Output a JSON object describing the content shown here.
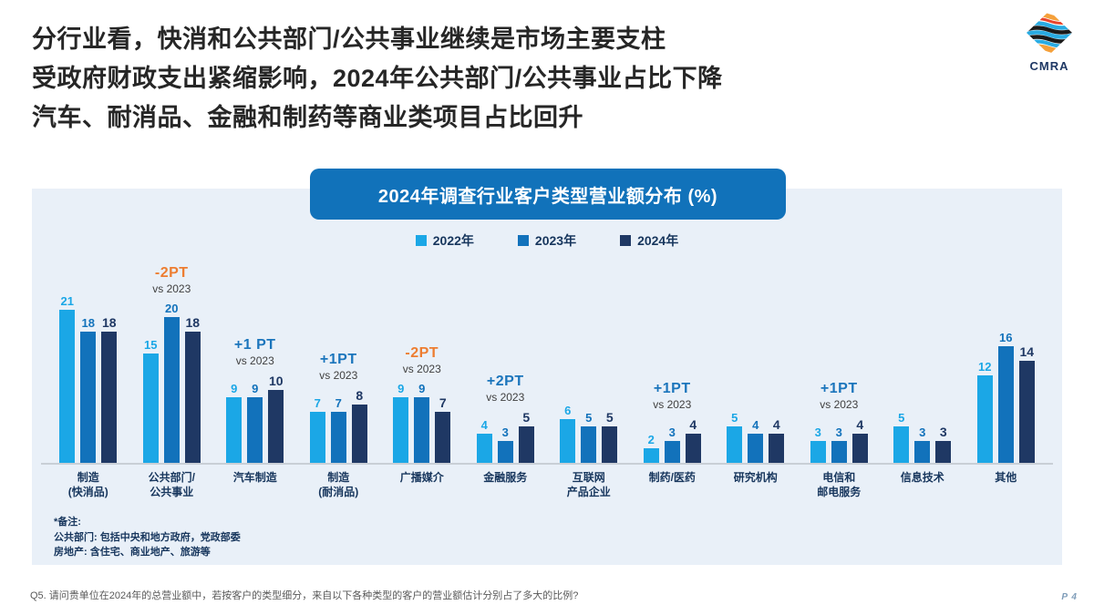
{
  "slide": {
    "title_lines": [
      "分行业看，快消和公共部门/公共事业继续是市场主要支柱",
      "受政府财政支出紧缩影响，2024年公共部门/公共事业占比下降",
      "汽车、耐消品、金融和制药等商业类项目占比回升"
    ],
    "logo": {
      "text": "CMRA"
    },
    "question": "Q5. 请问贵单位在2024年的总营业额中，若按客户的类型细分，来自以下各种类型的客户的营业额估计分别占了多大的比例?",
    "page_number": "P 4"
  },
  "chart_data": {
    "type": "bar",
    "title": "2024年调查行业客户类型营业额分布 (%)",
    "legend": [
      "2022年",
      "2023年",
      "2024年"
    ],
    "legend_position": "top-center",
    "grid": false,
    "ylim": [
      0,
      22
    ],
    "unit": "%",
    "categories": [
      "制造(快消品)",
      "公共部门/公共事业",
      "汽车制造",
      "制造(耐消品)",
      "广播媒介",
      "金融服务",
      "互联网产品企业",
      "制药/医药",
      "研究机构",
      "电信和邮电服务",
      "信息技术",
      "其他"
    ],
    "category_label_lines": [
      [
        "制造",
        "(快消品)"
      ],
      [
        "公共部门/",
        "公共事业"
      ],
      [
        "汽车制造"
      ],
      [
        "制造",
        "(耐消品)"
      ],
      [
        "广播媒介"
      ],
      [
        "金融服务"
      ],
      [
        "互联网",
        "产品企业"
      ],
      [
        "制药/医药"
      ],
      [
        "研究机构"
      ],
      [
        "电信和",
        "邮电服务"
      ],
      [
        "信息技术"
      ],
      [
        "其他"
      ]
    ],
    "series": [
      {
        "name": "2022年",
        "color": "#1BA7E6",
        "values": [
          21,
          15,
          9,
          7,
          9,
          4,
          6,
          2,
          5,
          3,
          5,
          12
        ]
      },
      {
        "name": "2023年",
        "color": "#1272BB",
        "values": [
          18,
          20,
          9,
          7,
          9,
          3,
          5,
          3,
          4,
          3,
          3,
          16
        ]
      },
      {
        "name": "2024年",
        "color": "#1F3864",
        "values": [
          18,
          18,
          10,
          8,
          7,
          5,
          5,
          4,
          4,
          4,
          3,
          14
        ]
      }
    ],
    "annotations": [
      {
        "category_index": 1,
        "delta": "-2PT",
        "note": "vs 2023",
        "direction": "down"
      },
      {
        "category_index": 2,
        "delta": "+1 PT",
        "note": "vs 2023",
        "direction": "up"
      },
      {
        "category_index": 3,
        "delta": "+1PT",
        "note": "vs 2023",
        "direction": "up"
      },
      {
        "category_index": 4,
        "delta": "-2PT",
        "note": "vs 2023",
        "direction": "down"
      },
      {
        "category_index": 5,
        "delta": "+2PT",
        "note": "vs 2023",
        "direction": "up"
      },
      {
        "category_index": 7,
        "delta": "+1PT",
        "note": "vs 2023",
        "direction": "up"
      },
      {
        "category_index": 9,
        "delta": "+1PT",
        "note": "vs 2023",
        "direction": "up"
      }
    ],
    "annotation_colors": {
      "up": "#1B75BC",
      "down": "#ED7D31"
    },
    "panel_background": "#E9F0F8",
    "banner_background": "#1172BA"
  },
  "footnote": {
    "lines": [
      "*备注:",
      "公共部门: 包括中央和地方政府，党政部委",
      "房地产: 含住宅、商业地产、旅游等"
    ]
  }
}
